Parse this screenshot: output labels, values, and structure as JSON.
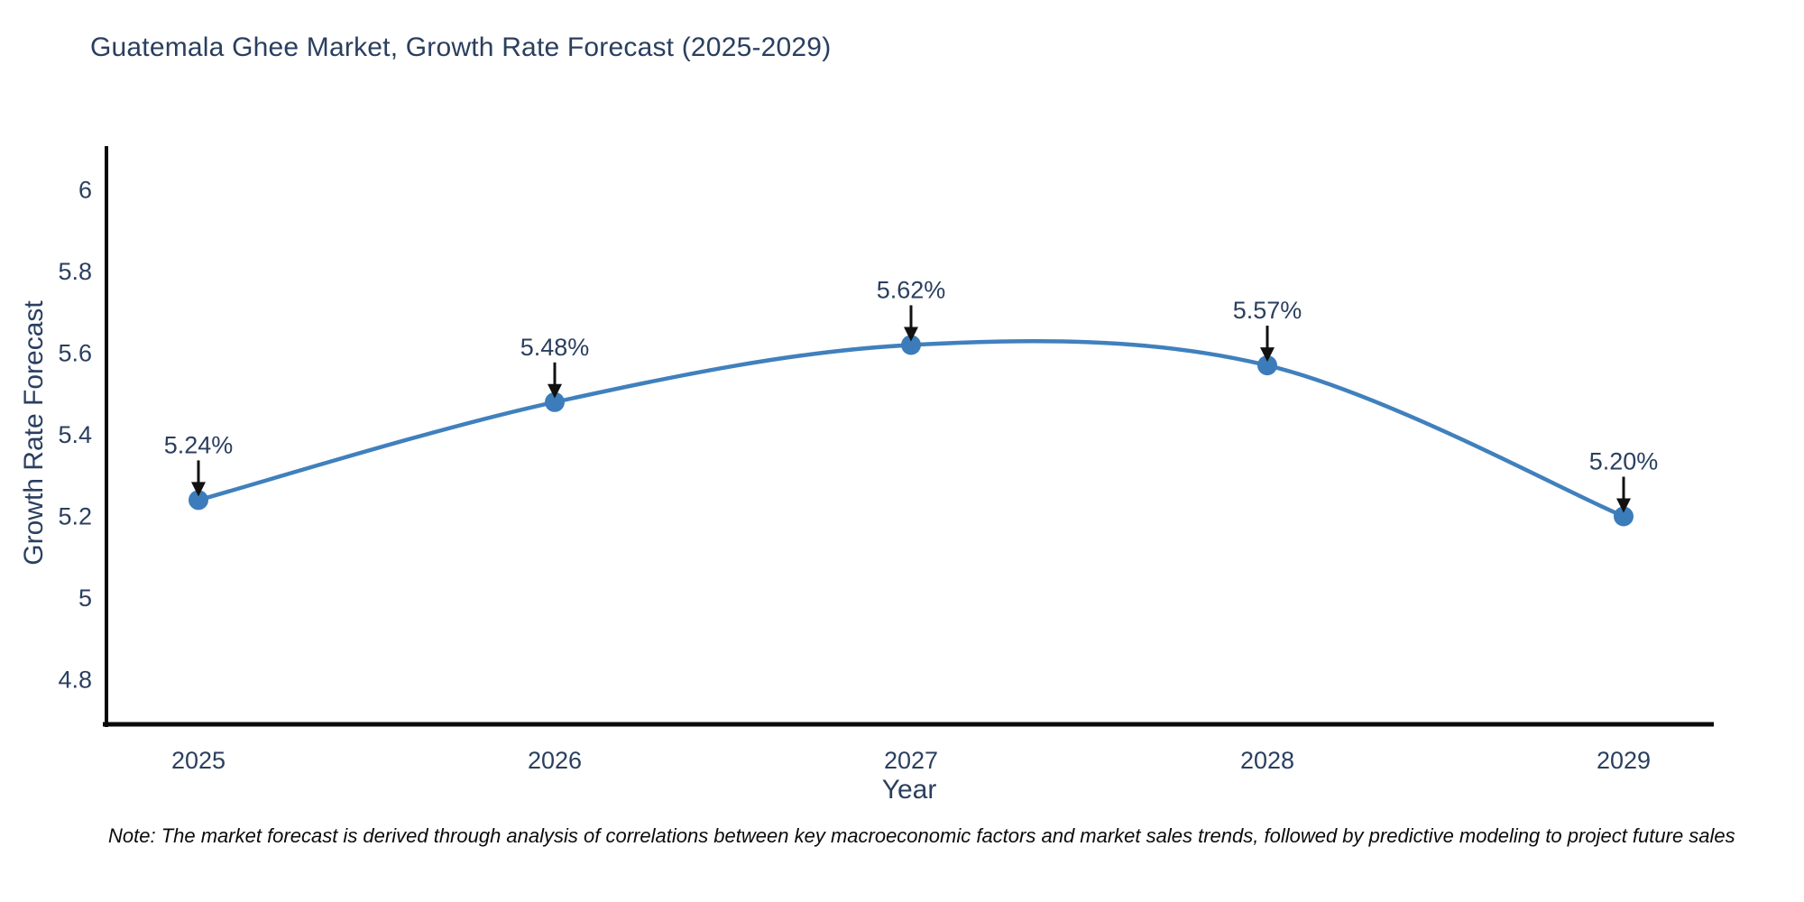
{
  "title": "Guatemala Ghee Market, Growth Rate Forecast (2025-2029)",
  "note": "Note: The market forecast is derived through analysis of correlations between key macroeconomic factors and market sales trends, followed by predictive modeling to project future sales",
  "chart_data": {
    "type": "line",
    "title": "Guatemala Ghee Market, Growth Rate Forecast (2025-2029)",
    "x": [
      2025,
      2026,
      2027,
      2028,
      2029
    ],
    "series": [
      {
        "name": "Growth Rate Forecast",
        "values": [
          5.24,
          5.48,
          5.62,
          5.57,
          5.2
        ]
      }
    ],
    "annotations": [
      "5.24%",
      "5.48%",
      "5.62%",
      "5.57%",
      "5.20%"
    ],
    "xlabel": "Year",
    "ylabel": "Growth Rate Forecast",
    "ytick_labels": [
      "4.8",
      "5",
      "5.2",
      "5.4",
      "5.6",
      "5.8",
      "6"
    ],
    "ylim": [
      4.68,
      6.12
    ],
    "grid": false,
    "legend_position": "none",
    "line_shape": "spline",
    "colors": {
      "line": "#4080bd",
      "marker": "#3c7cba",
      "axis": "#0a0a0a",
      "tick_text": "#2a3f5f",
      "annotation_text": "#2a3f5f",
      "annotation_arrow": "#111111"
    }
  }
}
